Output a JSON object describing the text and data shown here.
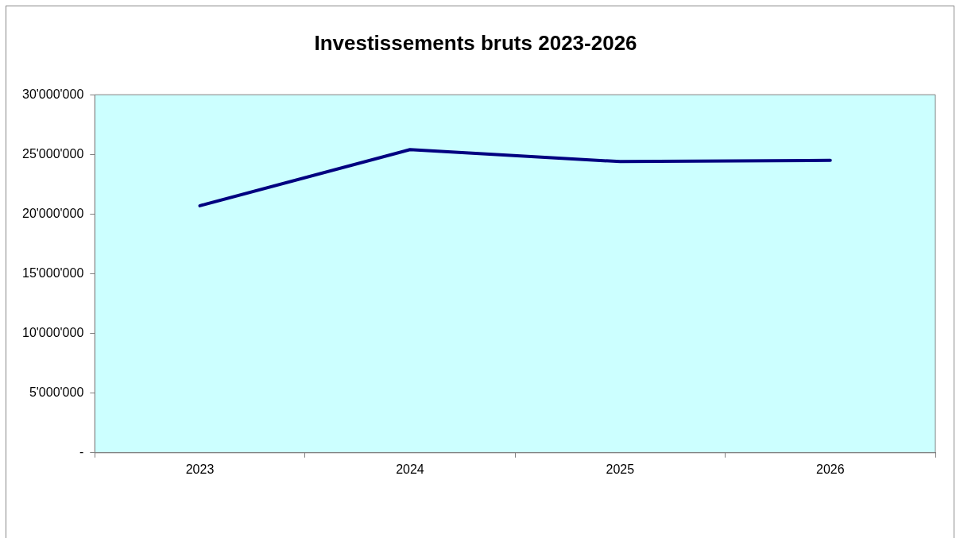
{
  "chart_data": {
    "type": "line",
    "title": "Investissements bruts 2023-2026",
    "categories": [
      "2023",
      "2024",
      "2025",
      "2026"
    ],
    "series": [
      {
        "color": "#000080",
        "values": [
          20700000,
          25400000,
          24400000,
          24500000
        ]
      }
    ],
    "ylim": [
      0,
      30000000
    ],
    "yticks": [
      {
        "value": 0,
        "label": "-"
      },
      {
        "value": 5000000,
        "label": "5'000'000"
      },
      {
        "value": 10000000,
        "label": "10'000'000"
      },
      {
        "value": 15000000,
        "label": "15'000'000"
      },
      {
        "value": 20000000,
        "label": "20'000'000"
      },
      {
        "value": 25000000,
        "label": "25'000'000"
      },
      {
        "value": 30000000,
        "label": "30'000'000"
      }
    ],
    "grid": false,
    "legend": false,
    "marker": "none",
    "line_style": "solid"
  }
}
